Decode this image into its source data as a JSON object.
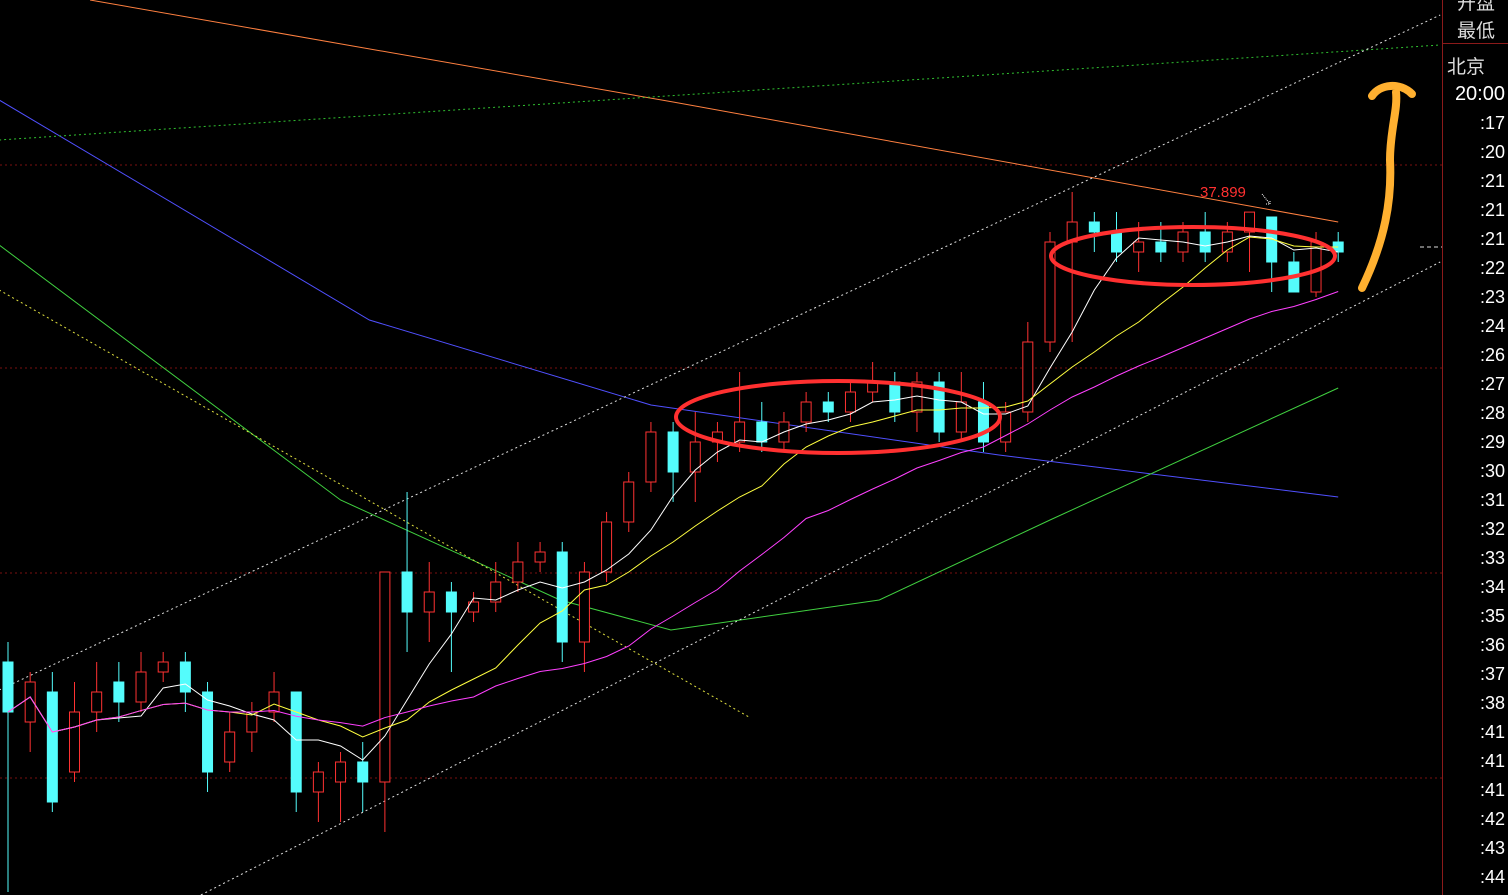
{
  "chart_data": {
    "type": "candlestick",
    "ylim": [
      31.07,
      40.02
    ],
    "colors": {
      "up": "#ff3232",
      "down": "#54fcfc",
      "ma5": "#ffffff",
      "ma10": "#ffff40",
      "ma20": "#ff40ff",
      "annotation": "#ff3030",
      "arrow": "#ffb030"
    },
    "candles": [
      [
        33.4,
        32.9,
        33.6,
        31.1
      ],
      [
        32.8,
        33.2,
        33.3,
        32.5
      ],
      [
        33.1,
        32.0,
        33.3,
        31.9
      ],
      [
        32.3,
        32.9,
        33.2,
        32.2
      ],
      [
        32.9,
        33.1,
        33.4,
        32.7
      ],
      [
        33.2,
        33.0,
        33.4,
        32.8
      ],
      [
        33.0,
        33.3,
        33.5,
        32.9
      ],
      [
        33.3,
        33.4,
        33.5,
        33.2
      ],
      [
        33.4,
        33.1,
        33.5,
        32.9
      ],
      [
        33.1,
        32.3,
        33.2,
        32.1
      ],
      [
        32.4,
        32.7,
        32.9,
        32.3
      ],
      [
        32.7,
        32.9,
        33.0,
        32.5
      ],
      [
        32.9,
        33.1,
        33.3,
        32.8
      ],
      [
        33.1,
        32.1,
        33.1,
        31.9
      ],
      [
        32.1,
        32.3,
        32.4,
        31.8
      ],
      [
        32.2,
        32.4,
        32.5,
        31.8
      ],
      [
        32.4,
        32.2,
        32.6,
        31.9
      ],
      [
        32.2,
        34.3,
        34.3,
        31.7
      ],
      [
        34.3,
        33.9,
        35.1,
        33.5
      ],
      [
        33.9,
        34.1,
        34.4,
        33.6
      ],
      [
        34.1,
        33.9,
        34.2,
        33.3
      ],
      [
        33.9,
        34.0,
        34.1,
        33.8
      ],
      [
        34.0,
        34.2,
        34.4,
        33.9
      ],
      [
        34.2,
        34.4,
        34.6,
        34.1
      ],
      [
        34.4,
        34.5,
        34.6,
        34.3
      ],
      [
        34.5,
        33.6,
        34.6,
        33.4
      ],
      [
        33.6,
        34.3,
        34.4,
        33.3
      ],
      [
        34.3,
        34.8,
        34.9,
        34.2
      ],
      [
        34.8,
        35.2,
        35.3,
        34.7
      ],
      [
        35.2,
        35.7,
        35.8,
        35.1
      ],
      [
        35.7,
        35.3,
        35.8,
        35.0
      ],
      [
        35.3,
        35.6,
        35.9,
        35.0
      ],
      [
        35.6,
        35.7,
        35.8,
        35.4
      ],
      [
        35.6,
        35.8,
        36.3,
        35.5
      ],
      [
        35.8,
        35.6,
        36.0,
        35.5
      ],
      [
        35.6,
        35.8,
        35.9,
        35.5
      ],
      [
        35.8,
        36.0,
        36.1,
        35.7
      ],
      [
        36.0,
        35.9,
        36.1,
        35.8
      ],
      [
        35.9,
        36.1,
        36.2,
        35.8
      ],
      [
        36.1,
        36.2,
        36.4,
        36.0
      ],
      [
        36.2,
        35.9,
        36.3,
        35.8
      ],
      [
        35.9,
        36.2,
        36.3,
        35.7
      ],
      [
        36.2,
        35.7,
        36.3,
        35.6
      ],
      [
        35.7,
        36.0,
        36.3,
        35.6
      ],
      [
        36.0,
        35.6,
        36.2,
        35.5
      ],
      [
        35.6,
        35.9,
        36.0,
        35.5
      ],
      [
        35.9,
        36.6,
        36.8,
        35.8
      ],
      [
        36.6,
        37.6,
        37.7,
        36.5
      ],
      [
        37.6,
        37.8,
        38.1,
        36.6
      ],
      [
        37.8,
        37.7,
        37.9,
        37.5
      ],
      [
        37.7,
        37.5,
        37.9,
        37.4
      ],
      [
        37.5,
        37.6,
        37.8,
        37.3
      ],
      [
        37.6,
        37.5,
        37.8,
        37.4
      ],
      [
        37.5,
        37.7,
        37.8,
        37.4
      ],
      [
        37.7,
        37.5,
        37.9,
        37.4
      ],
      [
        37.5,
        37.7,
        37.8,
        37.4
      ],
      [
        37.7,
        37.899,
        37.899,
        37.3
      ],
      [
        37.85,
        37.4,
        37.85,
        37.1
      ],
      [
        37.4,
        37.1,
        37.5,
        37.1
      ],
      [
        37.1,
        37.6,
        37.7,
        37.05
      ],
      [
        37.6,
        37.5,
        37.7,
        37.4
      ]
    ],
    "moving_averages": [
      5,
      10,
      20
    ],
    "long_lines": [
      {
        "color": "#ff8040",
        "style": "solid",
        "points": [
          [
            3.7,
            40.02
          ],
          [
            30,
            39.0
          ],
          [
            60,
            37.8
          ]
        ]
      },
      {
        "color": "#5050ff",
        "style": "solid",
        "points": [
          [
            -0.4,
            39.02
          ],
          [
            16.3,
            36.82
          ],
          [
            29,
            35.97
          ],
          [
            44.7,
            35.47
          ],
          [
            60,
            35.05
          ]
        ]
      },
      {
        "color": "#40d040",
        "style": "solid",
        "points": [
          [
            -0.4,
            37.57
          ],
          [
            15,
            35.02
          ],
          [
            24.9,
            34.02
          ],
          [
            29.9,
            33.72
          ],
          [
            39.3,
            34.02
          ],
          [
            47,
            34.82
          ],
          [
            60,
            36.14
          ]
        ]
      },
      {
        "color": "#30c030",
        "style": "dotted",
        "points": [
          [
            -0.4,
            38.62
          ],
          [
            64.6,
            39.57
          ]
        ]
      },
      {
        "color": "#e0e0e0",
        "style": "dotted",
        "points": [
          [
            -0.4,
            33.12
          ],
          [
            64.6,
            39.87
          ]
        ]
      },
      {
        "color": "#e0e0e0",
        "style": "dotted",
        "points": [
          [
            8.7,
            31.07
          ],
          [
            64.6,
            37.4
          ]
        ]
      },
      {
        "color": "#e0e040",
        "style": "dotted",
        "points": [
          [
            -0.4,
            37.12
          ],
          [
            33.5,
            32.84
          ]
        ]
      }
    ],
    "grid_prices": [
      38.37,
      36.34,
      34.29,
      32.24
    ],
    "annotations": {
      "high_label": "37.899"
    }
  },
  "side_panel": {
    "header_top": "开盘",
    "header_low": "最低",
    "city": "北京",
    "times": [
      "20:00",
      ":17",
      ":20",
      ":21",
      ":21",
      ":21",
      ":22",
      ":23",
      ":24",
      ":26",
      ":27",
      ":28",
      ":29",
      ":30",
      ":31",
      ":32",
      ":33",
      ":34",
      ":35",
      ":36",
      ":37",
      ":38",
      ":41",
      ":41",
      ":41",
      ":42",
      ":43",
      ":44"
    ]
  }
}
